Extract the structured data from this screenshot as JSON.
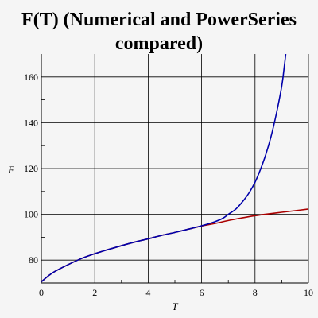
{
  "chart_data": {
    "type": "line",
    "title_lines": [
      "F(T) (Numerical and PowerSeries",
      "compared)"
    ],
    "xlabel": "T",
    "ylabel": "F",
    "xlim": [
      0,
      10
    ],
    "ylim": [
      70,
      170
    ],
    "xticks": [
      0,
      2,
      4,
      6,
      8,
      10
    ],
    "yticks": [
      80,
      100,
      120,
      140,
      160
    ],
    "xtick_labels": [
      "0",
      "2",
      "4",
      "6",
      "8",
      "10"
    ],
    "ytick_labels": [
      "80",
      "100",
      "120",
      "140",
      "160"
    ],
    "grid": true,
    "series": [
      {
        "color": "#aa0000",
        "x": [
          0,
          0.25,
          0.5,
          1,
          1.5,
          2,
          2.5,
          3,
          3.5,
          4,
          4.5,
          5,
          5.5,
          6,
          6.5,
          7,
          7.5,
          8,
          8.5,
          9,
          9.5,
          10
        ],
        "y": [
          70.5,
          73,
          75,
          78,
          80.7,
          82.8,
          84.6,
          86.3,
          87.9,
          89.3,
          90.8,
          92.1,
          93.5,
          94.9,
          96.0,
          97.3,
          98.4,
          99.4,
          100.2,
          100.9,
          101.6,
          102.3
        ]
      },
      {
        "color": "#0000aa",
        "x": [
          0,
          0.25,
          0.5,
          1,
          1.5,
          2,
          2.5,
          3,
          3.5,
          4,
          4.5,
          5,
          5.5,
          6,
          6.5,
          6.8,
          7,
          7.3,
          7.6,
          7.8,
          8,
          8.2,
          8.4,
          8.6,
          8.8,
          9,
          9.1,
          9.15
        ],
        "y": [
          70.5,
          73,
          75,
          78,
          80.7,
          82.8,
          84.6,
          86.3,
          87.9,
          89.3,
          90.8,
          92.1,
          93.5,
          95.0,
          96.8,
          98.3,
          100.0,
          102.5,
          106.5,
          109.8,
          114.0,
          119.5,
          126.0,
          134.0,
          144.0,
          156.0,
          165.0,
          170.0
        ]
      }
    ]
  }
}
